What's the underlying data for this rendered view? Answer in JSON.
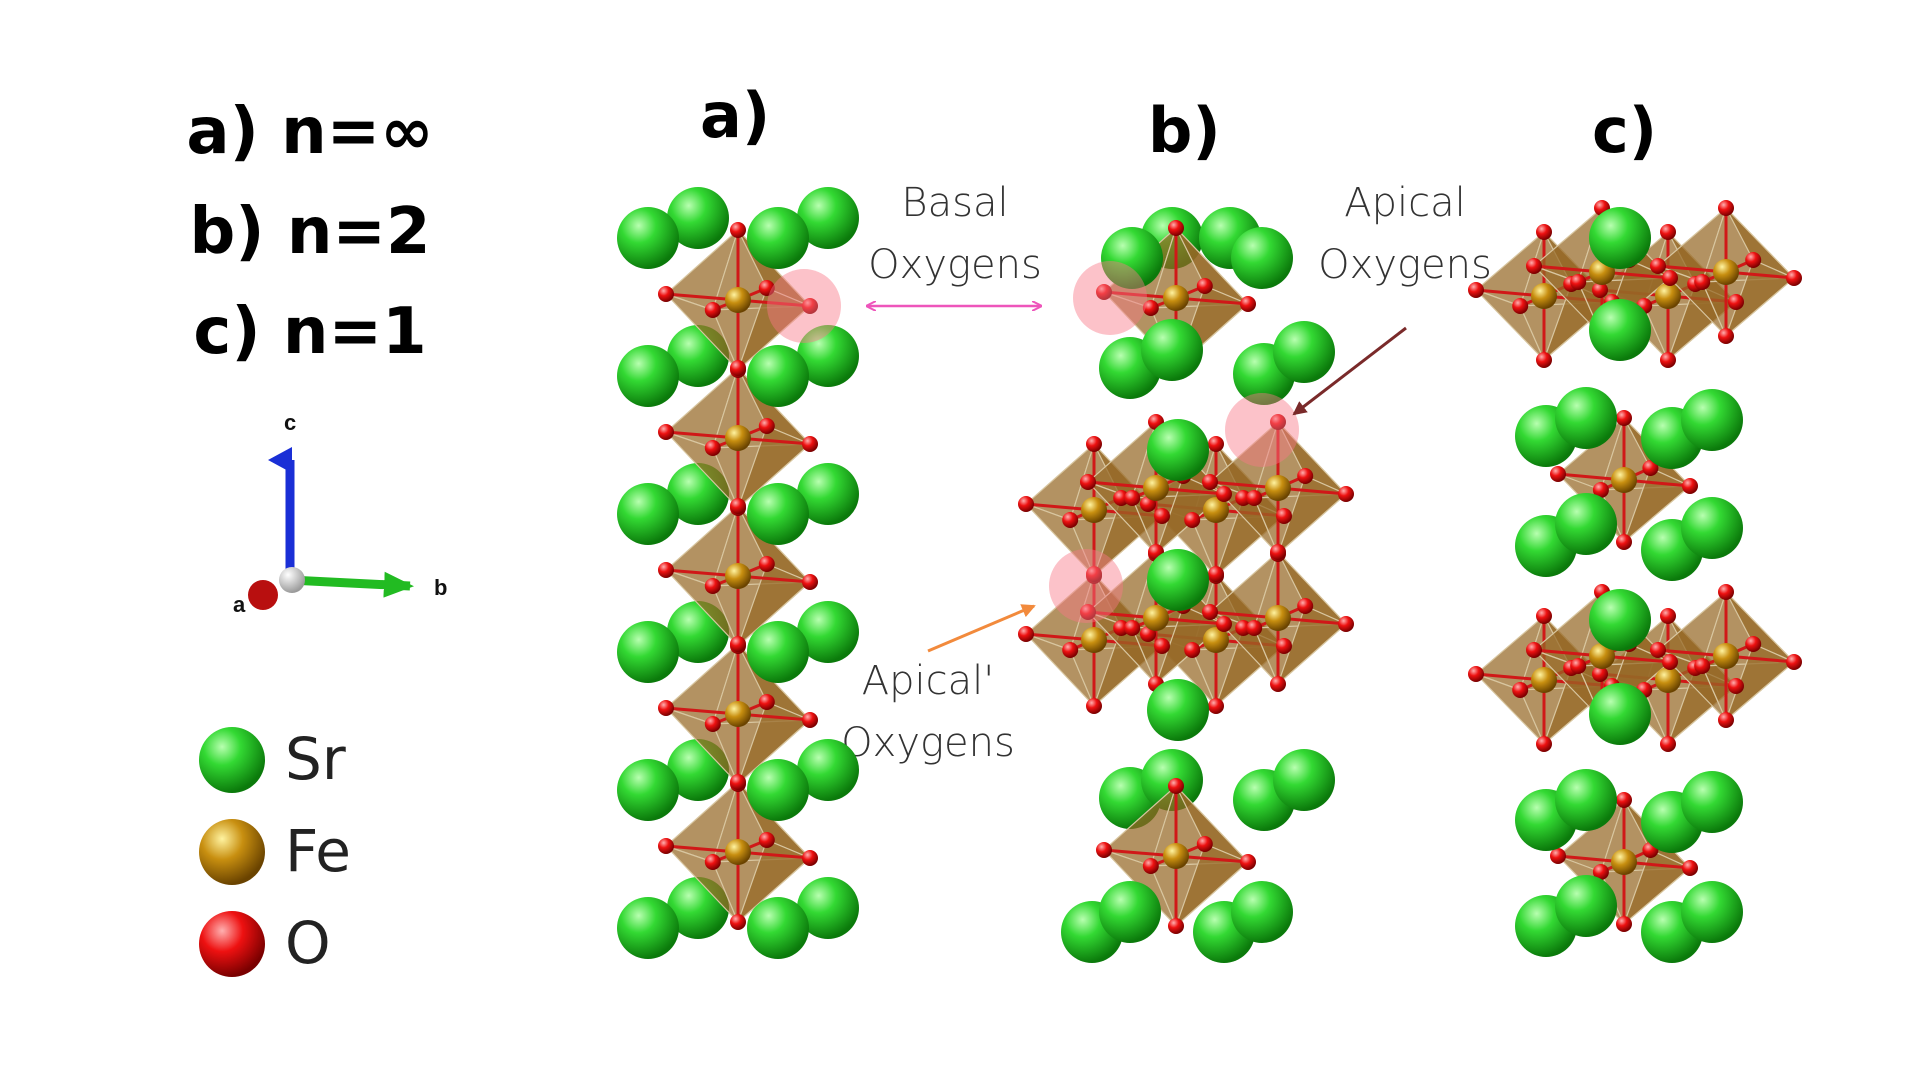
{
  "key": {
    "line_a": "a) n=∞",
    "line_b": "b) n=2",
    "line_c": "c) n=1"
  },
  "panels": {
    "a": "a)",
    "b": "b)",
    "c": "c)"
  },
  "axes": {
    "c": "c",
    "a": "a",
    "b": "b",
    "colors": {
      "c": "#1a2fd6",
      "b": "#22bb22",
      "a": "#bb1010"
    }
  },
  "annotations": {
    "basal_line1": "Basal",
    "basal_line2": "Oxygens",
    "apical_line1": "Apical",
    "apical_line2": "Oxygens",
    "apical_prime_line1": "Apical'",
    "apical_prime_line2": "Oxygens",
    "arrow_colors": {
      "basal": "#ee55bb",
      "apical": "#7a2a2a",
      "apical_prime": "#f28a3c"
    }
  },
  "legend": {
    "items": [
      {
        "label": "Sr",
        "color": "#22cc22"
      },
      {
        "label": "Fe",
        "color": "#c08a10"
      },
      {
        "label": "O",
        "color": "#ee1111"
      }
    ]
  }
}
